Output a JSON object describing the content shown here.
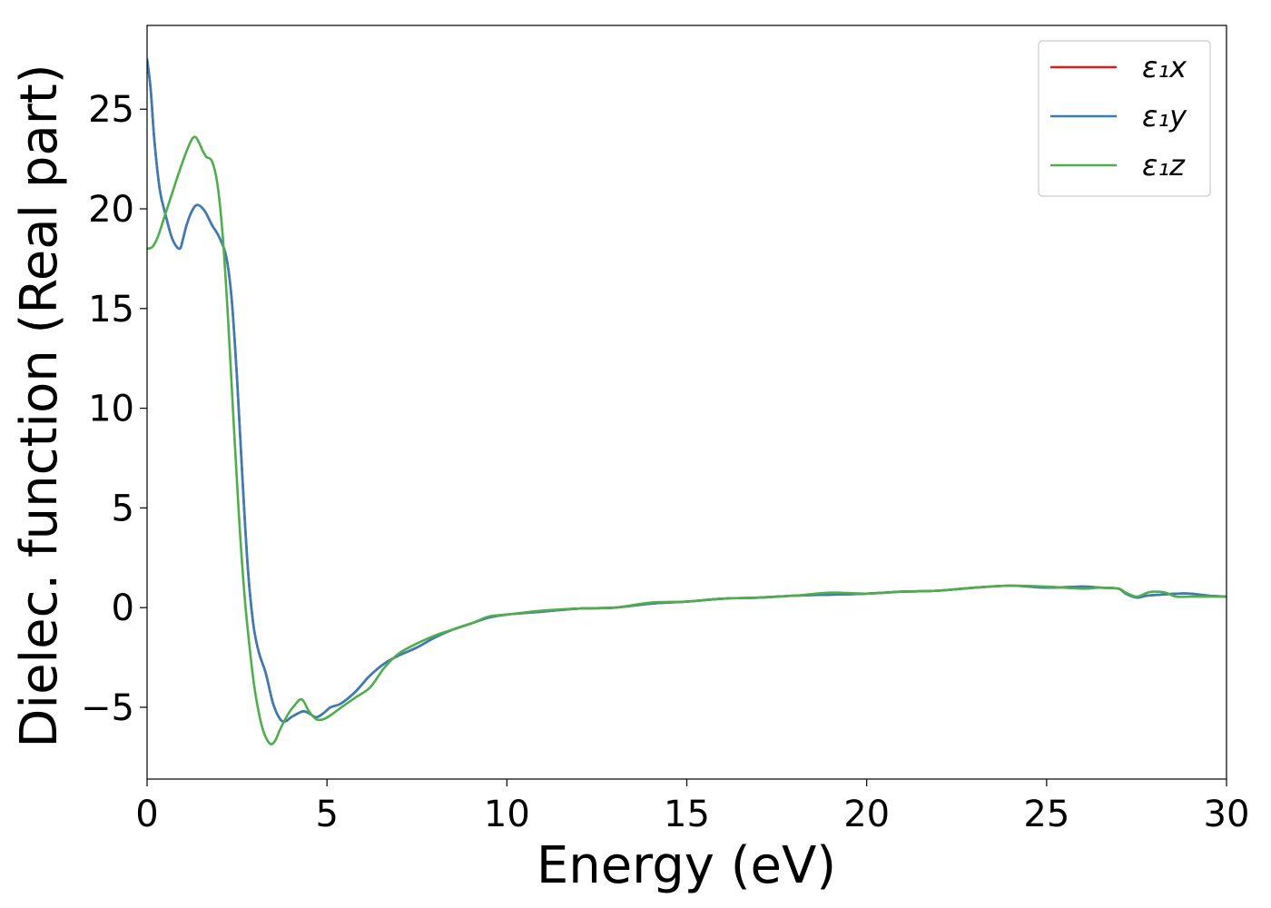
{
  "chart_data": {
    "type": "line",
    "title": "",
    "xlabel": "Energy (eV)",
    "ylabel": "Dielec. function (Real part)",
    "xlim": [
      0,
      30
    ],
    "ylim": [
      -8.6,
      29.2
    ],
    "x_ticks": [
      0,
      5,
      10,
      15,
      20,
      25,
      30
    ],
    "y_ticks": [
      -5,
      0,
      5,
      10,
      15,
      20,
      25
    ],
    "y_tick_labels": [
      "−5",
      "0",
      "5",
      "10",
      "15",
      "20",
      "25"
    ],
    "grid": false,
    "legend_position": "top-right",
    "series": [
      {
        "name": "ε₁x",
        "color": "#e41a1c",
        "x": [
          0,
          0.1,
          0.2,
          0.35,
          0.5,
          0.7,
          0.9,
          1.0,
          1.1,
          1.25,
          1.4,
          1.6,
          1.8,
          2.0,
          2.2,
          2.35,
          2.5,
          2.65,
          2.8,
          2.95,
          3.1,
          3.3,
          3.5,
          3.7,
          3.85,
          4.0,
          4.2,
          4.35,
          4.5,
          4.7,
          4.9,
          5.1,
          5.4,
          5.8,
          6.2,
          6.6,
          7.0,
          7.5,
          8.0,
          8.5,
          9.0,
          9.5,
          10.0,
          11.0,
          12.0,
          13.0,
          14.0,
          15.0,
          16.0,
          17.0,
          18.0,
          19.0,
          20.0,
          21.0,
          22.0,
          23.0,
          24.0,
          25.0,
          26.0,
          26.5,
          27.0,
          27.2,
          27.5,
          27.8,
          28.2,
          28.6,
          29.0,
          29.5,
          30.0
        ],
        "values": [
          27.5,
          26.0,
          23.5,
          21.0,
          19.8,
          18.5,
          18.0,
          18.5,
          19.2,
          19.9,
          20.2,
          19.9,
          19.2,
          18.6,
          17.6,
          15.5,
          11.5,
          6.5,
          2.0,
          -0.8,
          -2.2,
          -3.3,
          -4.8,
          -5.6,
          -5.7,
          -5.5,
          -5.3,
          -5.2,
          -5.3,
          -5.5,
          -5.3,
          -5.0,
          -4.8,
          -4.2,
          -3.4,
          -2.8,
          -2.4,
          -2.0,
          -1.5,
          -1.1,
          -0.8,
          -0.5,
          -0.35,
          -0.2,
          -0.05,
          0.0,
          0.2,
          0.3,
          0.45,
          0.5,
          0.6,
          0.65,
          0.7,
          0.8,
          0.85,
          1.0,
          1.1,
          1.0,
          1.05,
          1.0,
          0.95,
          0.7,
          0.5,
          0.6,
          0.65,
          0.7,
          0.7,
          0.6,
          0.55
        ]
      },
      {
        "name": "ε₁y",
        "color": "#377eb8",
        "x": [
          0,
          0.1,
          0.2,
          0.35,
          0.5,
          0.7,
          0.9,
          1.0,
          1.1,
          1.25,
          1.4,
          1.6,
          1.8,
          2.0,
          2.2,
          2.35,
          2.5,
          2.65,
          2.8,
          2.95,
          3.1,
          3.3,
          3.5,
          3.7,
          3.85,
          4.0,
          4.2,
          4.35,
          4.5,
          4.7,
          4.9,
          5.1,
          5.4,
          5.8,
          6.2,
          6.6,
          7.0,
          7.5,
          8.0,
          8.5,
          9.0,
          9.5,
          10.0,
          11.0,
          12.0,
          13.0,
          14.0,
          15.0,
          16.0,
          17.0,
          18.0,
          19.0,
          20.0,
          21.0,
          22.0,
          23.0,
          24.0,
          25.0,
          26.0,
          26.5,
          27.0,
          27.2,
          27.5,
          27.8,
          28.2,
          28.6,
          29.0,
          29.5,
          30.0
        ],
        "values": [
          27.5,
          26.0,
          23.5,
          21.0,
          19.8,
          18.5,
          18.0,
          18.5,
          19.2,
          19.9,
          20.2,
          19.9,
          19.2,
          18.6,
          17.6,
          15.5,
          11.5,
          6.5,
          2.0,
          -0.8,
          -2.2,
          -3.3,
          -4.8,
          -5.6,
          -5.7,
          -5.5,
          -5.3,
          -5.2,
          -5.3,
          -5.5,
          -5.3,
          -5.0,
          -4.8,
          -4.2,
          -3.4,
          -2.8,
          -2.4,
          -2.0,
          -1.5,
          -1.1,
          -0.8,
          -0.5,
          -0.35,
          -0.2,
          -0.05,
          0.0,
          0.2,
          0.3,
          0.45,
          0.5,
          0.6,
          0.65,
          0.7,
          0.8,
          0.85,
          1.0,
          1.1,
          1.0,
          1.05,
          1.0,
          0.95,
          0.7,
          0.5,
          0.6,
          0.65,
          0.7,
          0.7,
          0.6,
          0.55
        ]
      },
      {
        "name": "ε₁z",
        "color": "#4daf4a",
        "x": [
          0,
          0.15,
          0.3,
          0.5,
          0.7,
          0.9,
          1.1,
          1.25,
          1.35,
          1.45,
          1.55,
          1.65,
          1.8,
          1.95,
          2.1,
          2.25,
          2.4,
          2.55,
          2.7,
          2.85,
          3.0,
          3.2,
          3.4,
          3.55,
          3.7,
          3.9,
          4.1,
          4.3,
          4.5,
          4.7,
          4.9,
          5.1,
          5.4,
          5.8,
          6.2,
          6.6,
          7.0,
          7.5,
          8.0,
          8.5,
          9.0,
          9.5,
          10.0,
          11.0,
          12.0,
          13.0,
          14.0,
          15.0,
          16.0,
          17.0,
          18.0,
          19.0,
          20.0,
          21.0,
          22.0,
          23.0,
          24.0,
          25.0,
          26.0,
          26.5,
          27.0,
          27.2,
          27.5,
          27.8,
          28.0,
          28.3,
          28.6,
          29.0,
          29.5,
          30.0
        ],
        "values": [
          18.0,
          18.1,
          18.6,
          19.7,
          20.8,
          21.9,
          22.9,
          23.5,
          23.6,
          23.3,
          22.9,
          22.6,
          22.4,
          21.3,
          18.7,
          14.5,
          9.5,
          4.7,
          0.8,
          -2.0,
          -4.2,
          -6.0,
          -6.8,
          -6.7,
          -6.1,
          -5.4,
          -4.9,
          -4.6,
          -5.2,
          -5.6,
          -5.6,
          -5.4,
          -5.0,
          -4.5,
          -4.0,
          -3.0,
          -2.3,
          -1.8,
          -1.4,
          -1.1,
          -0.8,
          -0.45,
          -0.35,
          -0.15,
          -0.05,
          0.0,
          0.25,
          0.3,
          0.45,
          0.5,
          0.6,
          0.75,
          0.7,
          0.8,
          0.85,
          1.0,
          1.1,
          1.05,
          0.95,
          1.0,
          0.95,
          0.75,
          0.55,
          0.75,
          0.8,
          0.75,
          0.55,
          0.55,
          0.55,
          0.55
        ]
      }
    ]
  }
}
